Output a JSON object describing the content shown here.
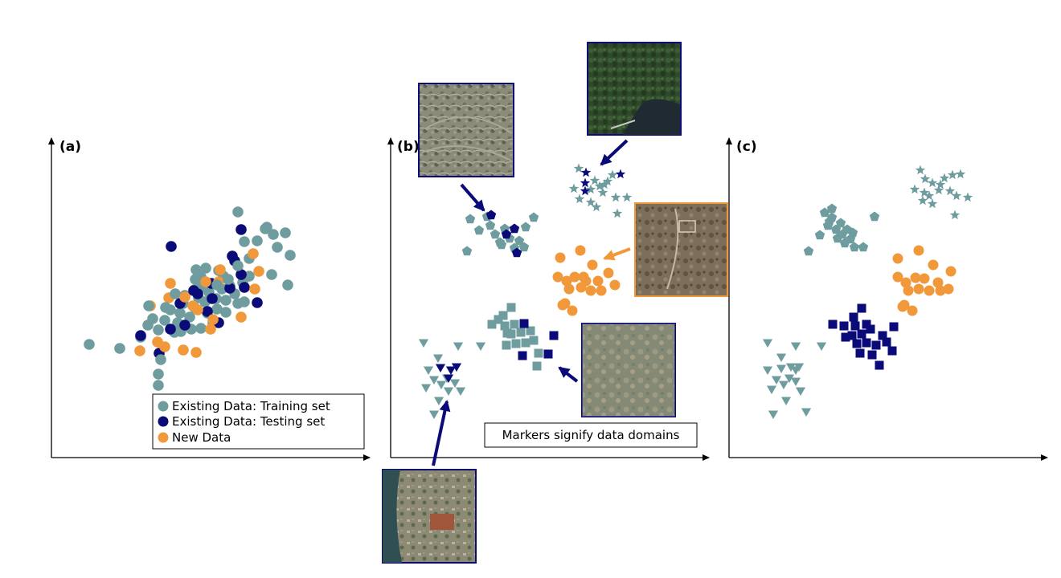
{
  "panels": [
    {
      "label": "(a)"
    },
    {
      "label": "(b)"
    },
    {
      "label": "(c)"
    }
  ],
  "legend": {
    "items": [
      {
        "label": "Existing Data: Training set",
        "color": "#6f9d9f"
      },
      {
        "label": "Existing Data: Testing set",
        "color": "#0a0a78"
      },
      {
        "label": "New Data",
        "color": "#f0983a"
      }
    ]
  },
  "note": "Markers signify data domains",
  "colors": {
    "training": "#6f9d9f",
    "testing": "#0a0a78",
    "new": "#f0983a",
    "arrow_blue": "#0a0a78",
    "arrow_orange": "#f0983a"
  },
  "domains": [
    {
      "name": "pentagon-domain",
      "marker": "pentagon",
      "thumbnail": "residential-aerial"
    },
    {
      "name": "star-domain",
      "marker": "star",
      "thumbnail": "forest-river-aerial"
    },
    {
      "name": "circle-domain",
      "marker": "circle",
      "thumbnail": "arid-land-aerial"
    },
    {
      "name": "square-domain",
      "marker": "square",
      "thumbnail": "hazy-fields-aerial"
    },
    {
      "name": "triangle-domain",
      "marker": "triangle-down",
      "thumbnail": "coastal-town-aerial"
    }
  ]
}
